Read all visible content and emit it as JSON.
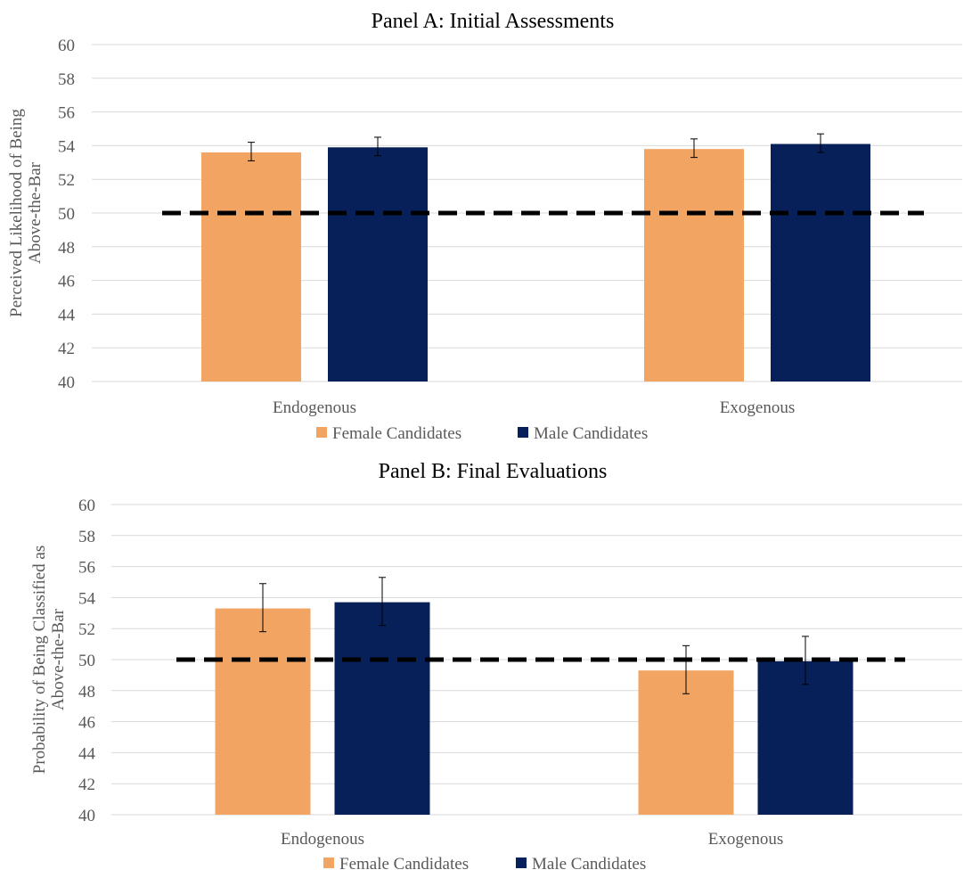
{
  "palette": {
    "female": "#F2A463",
    "male": "#07205A",
    "gridline": "#D9D9D9",
    "reference_line": "#000000",
    "error_bar": "#000000"
  },
  "chart_data": [
    {
      "type": "bar",
      "title": "Panel A: Initial Assessments",
      "ylabel_lines": [
        "Perceived Likelihood of Being",
        "Above-the-Bar"
      ],
      "categories": [
        "Endogenous",
        "Exogenous"
      ],
      "ylim": [
        40,
        60
      ],
      "yticks": [
        "40",
        "42",
        "44",
        "46",
        "48",
        "50",
        "52",
        "54",
        "56",
        "58",
        "60"
      ],
      "grid": true,
      "legend_position": "bottom",
      "reference_line": 50,
      "series": [
        {
          "name": "Female Candidates",
          "values": [
            53.6,
            53.8
          ],
          "error_low": [
            53.1,
            53.3
          ],
          "error_high": [
            54.2,
            54.4
          ]
        },
        {
          "name": "Male Candidates",
          "values": [
            53.9,
            54.1
          ],
          "error_low": [
            53.4,
            53.6
          ],
          "error_high": [
            54.5,
            54.7
          ]
        }
      ]
    },
    {
      "type": "bar",
      "title": "Panel B: Final Evaluations",
      "ylabel_lines": [
        "Probability of Being Classified as",
        "Above-the-Bar"
      ],
      "categories": [
        "Endogenous",
        "Exogenous"
      ],
      "ylim": [
        40,
        60
      ],
      "yticks": [
        "40",
        "42",
        "44",
        "46",
        "48",
        "50",
        "52",
        "54",
        "56",
        "58",
        "60"
      ],
      "grid": true,
      "legend_position": "bottom",
      "reference_line": 50,
      "series": [
        {
          "name": "Female Candidates",
          "values": [
            53.3,
            49.3
          ],
          "error_low": [
            51.8,
            47.8
          ],
          "error_high": [
            54.9,
            50.9
          ]
        },
        {
          "name": "Male Candidates",
          "values": [
            53.7,
            49.9
          ],
          "error_low": [
            52.2,
            48.4
          ],
          "error_high": [
            55.3,
            51.5
          ]
        }
      ]
    }
  ]
}
